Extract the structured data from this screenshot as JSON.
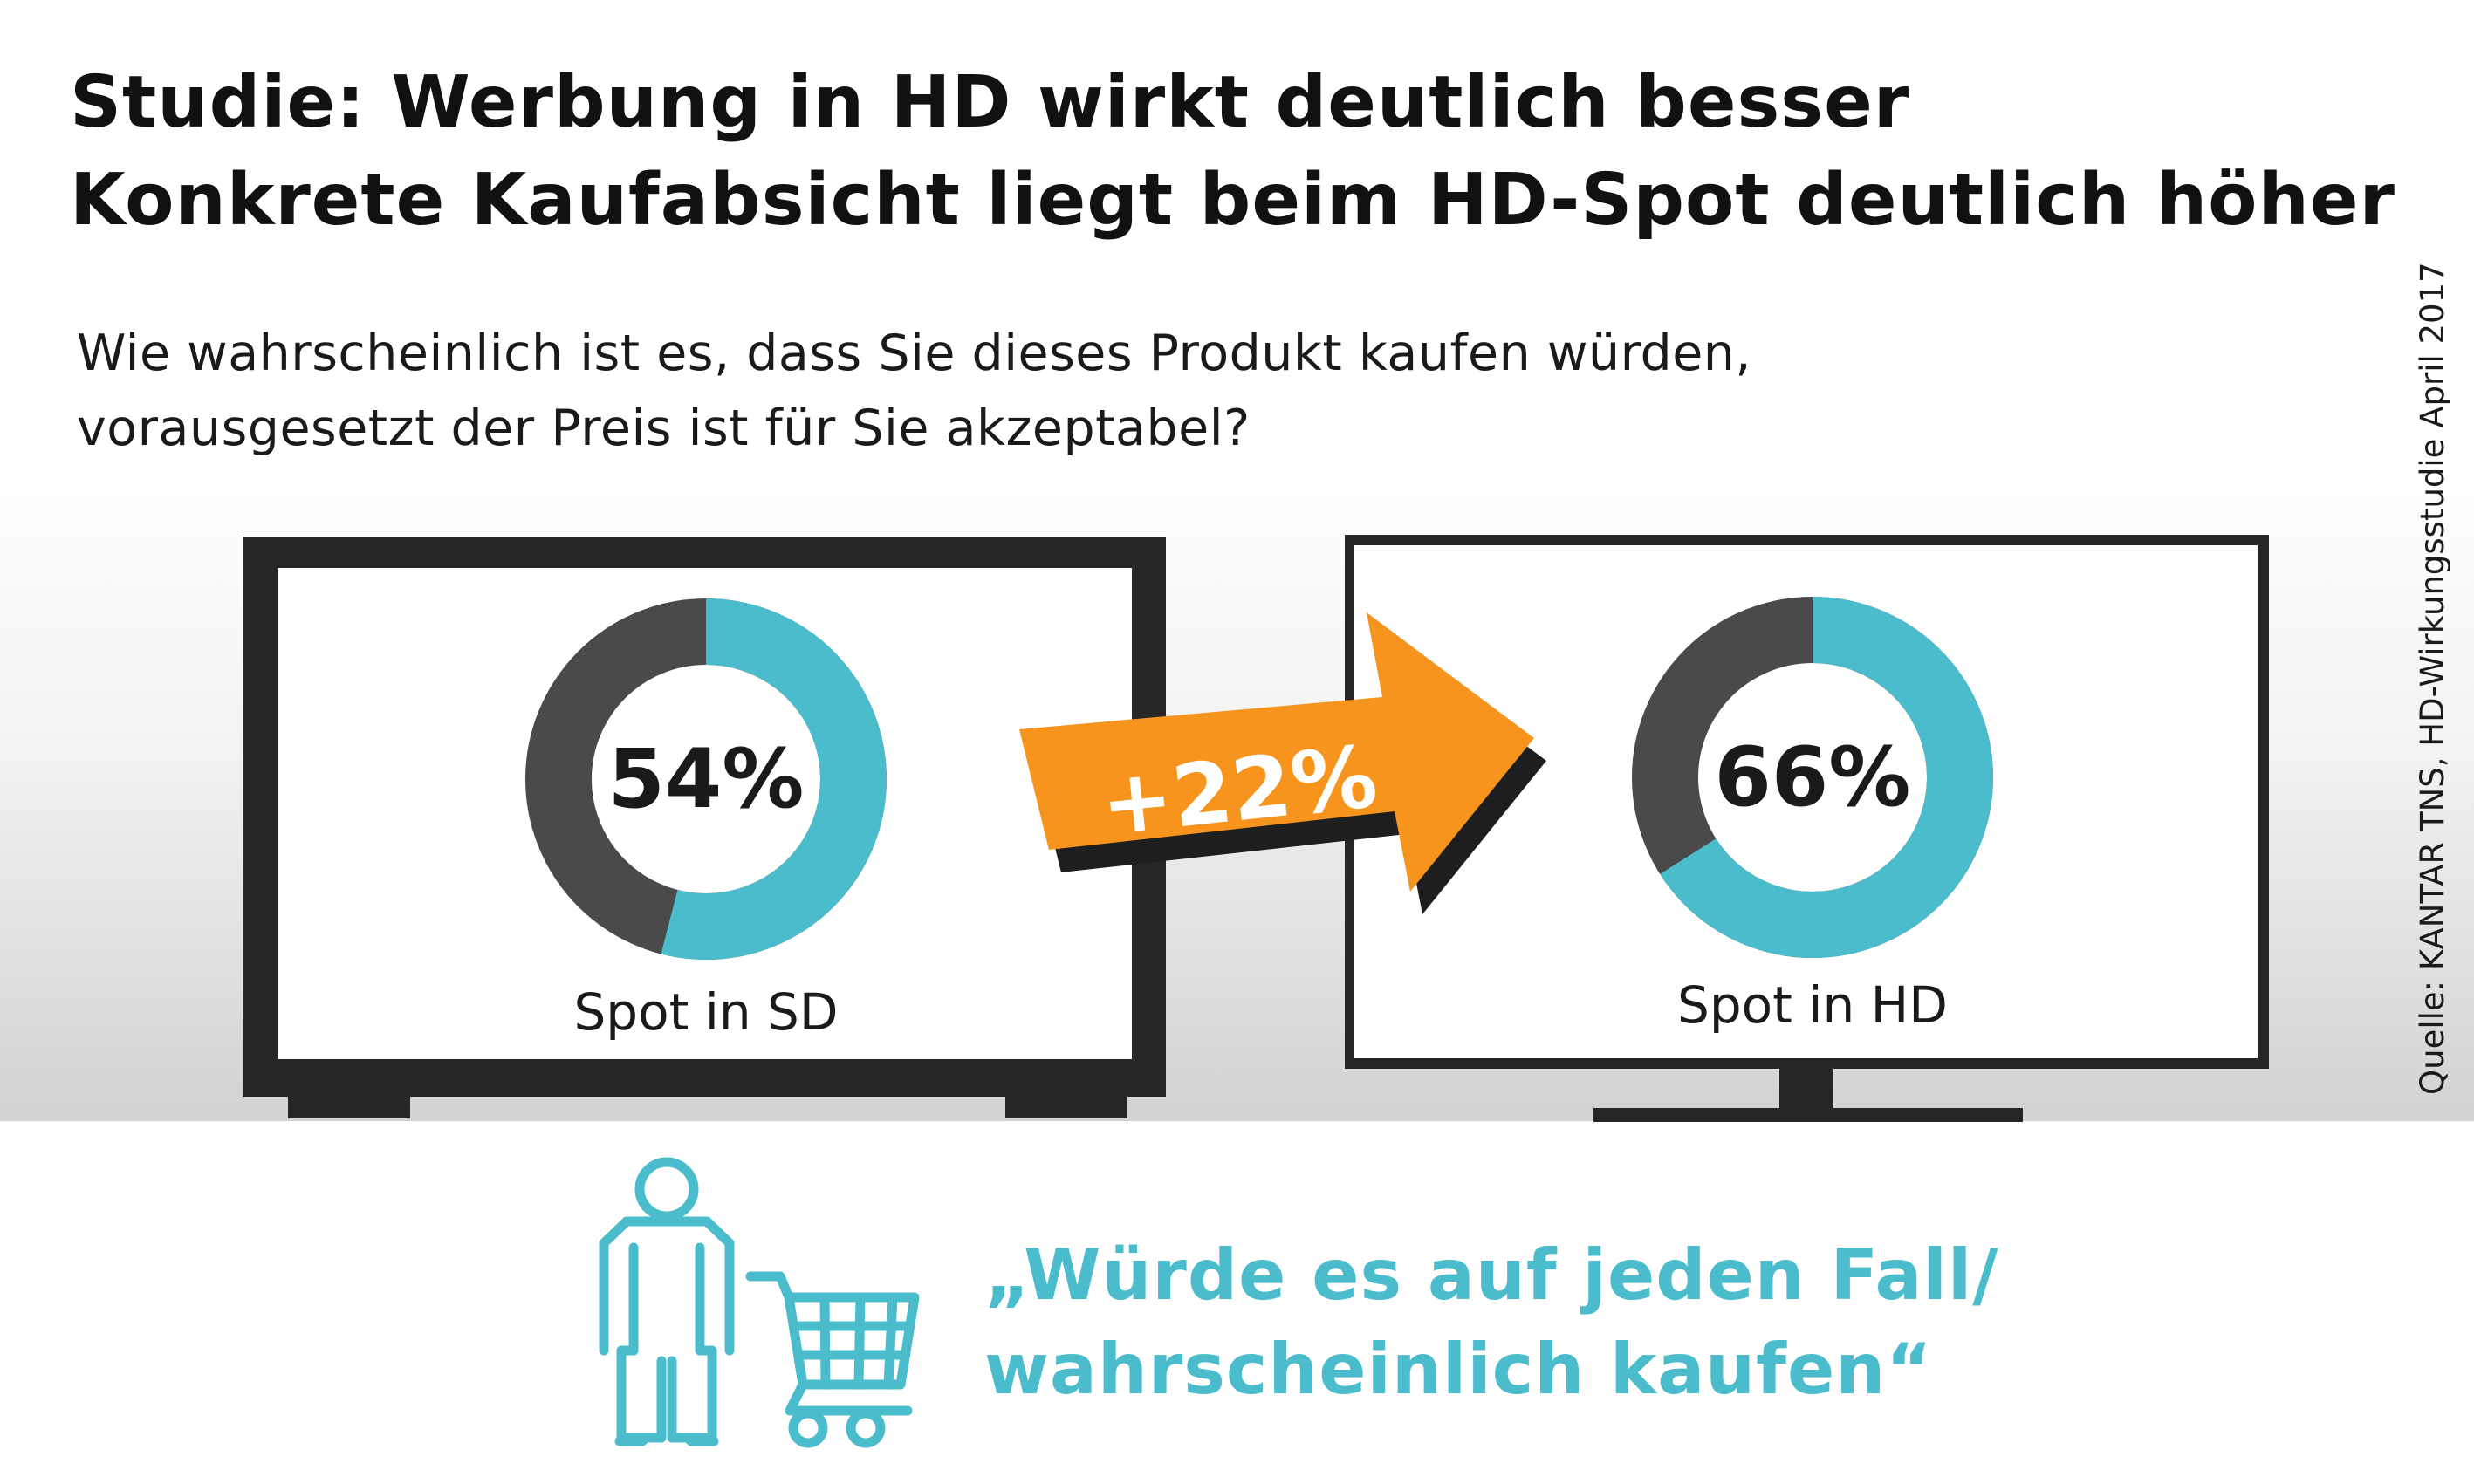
{
  "header": {
    "title_line1": "Studie: Werbung in HD wirkt deutlich besser",
    "title_line2": "Konkrete Kaufabsicht liegt beim HD-Spot deutlich höher",
    "question_line1": "Wie wahrscheinlich ist es, dass Sie dieses Produkt kaufen würden,",
    "question_line2": "vorausgesetzt der Preis ist für Sie akzeptabel?"
  },
  "source": "Quelle: KANTAR TNS, HD-Wirkungsstudie April 2017",
  "chart_data": {
    "type": "pie",
    "donuts": [
      {
        "label": "Spot in SD",
        "value": 54,
        "value_text": "54%"
      },
      {
        "label": "Spot in HD",
        "value": 66,
        "value_text": "66%"
      }
    ],
    "difference_text": "+22%",
    "colors": {
      "value": "#4bbccb",
      "rest": "#4a4a4a",
      "arrow": "#f7941d",
      "tv": "#262626"
    }
  },
  "footer": {
    "slogan_line1": "„Würde es auf jeden Fall/",
    "slogan_line2": "wahrscheinlich kaufen“",
    "icons": [
      "person-icon",
      "shopping-cart-icon"
    ]
  }
}
